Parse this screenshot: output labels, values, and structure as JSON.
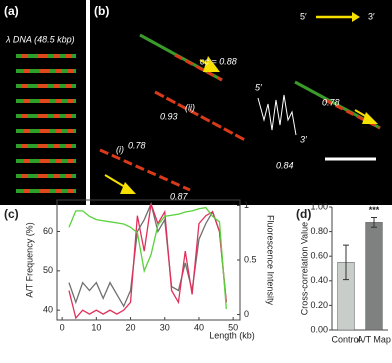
{
  "panels": {
    "a": {
      "label": "(a)",
      "caption": "λ DNA (48.5 kbp)"
    },
    "b": {
      "label": "(b)",
      "end5": "5′",
      "end3": "3′",
      "annotations": [
        "cc = 0.88",
        "0.93",
        "(ii)",
        "(i)",
        "0.78",
        "0.87",
        "0.78",
        "5′",
        "3′",
        "0.84"
      ]
    }
  },
  "chart_data": [
    {
      "type": "line",
      "label": "(c)",
      "xlabel": "Length (kb)",
      "ylabel": "A/T Frequency (%)",
      "y2label": "Fluorescence Intensity",
      "x": [
        2,
        4,
        6,
        8,
        10,
        12,
        14,
        16,
        18,
        20,
        22,
        24,
        26,
        28,
        30,
        32,
        34,
        36,
        38,
        40,
        42,
        44,
        46,
        48
      ],
      "series": [
        {
          "color": "#707070",
          "values": [
            47,
            42,
            47,
            45,
            47,
            43,
            47,
            44,
            41,
            45,
            60,
            63,
            67,
            60,
            63,
            46,
            45,
            52,
            45,
            58,
            62,
            65,
            60,
            42
          ]
        },
        {
          "color": "#e0305a",
          "values": [
            45,
            38,
            40,
            39,
            40,
            39,
            40,
            39,
            40,
            42,
            64,
            55,
            67,
            62,
            65,
            45,
            42,
            55,
            44,
            62,
            64,
            65,
            60,
            42
          ]
        },
        {
          "color": "#5ad23c",
          "axis": "y2",
          "values": [
            0.8,
            0.95,
            0.95,
            0.9,
            0.87,
            0.86,
            0.85,
            0.84,
            0.83,
            0.8,
            0.75,
            0.4,
            0.55,
            0.82,
            0.9,
            0.91,
            0.92,
            0.94,
            0.95,
            0.97,
            0.98,
            0.9,
            0.85,
            0.05
          ]
        }
      ],
      "xlim": [
        -1.5,
        52
      ],
      "xticks": [
        0,
        10,
        20,
        30,
        40,
        50
      ],
      "ylim": [
        37.5,
        68
      ],
      "yticks": [
        40,
        50,
        60
      ],
      "y2lim": [
        -0.05,
        1.05
      ],
      "y2ticks": [
        0,
        0.5,
        1
      ]
    },
    {
      "type": "bar",
      "label": "(d)",
      "ylabel": "Cross-correlation Value",
      "categories": [
        "Control",
        "A/T Map"
      ],
      "values": [
        0.55,
        0.875
      ],
      "errors": [
        0.14,
        0.04
      ],
      "colors": [
        "#c9cdc9",
        "#7f8181"
      ],
      "annotation": "***",
      "ylim": [
        0,
        1
      ],
      "yticks": [
        {
          "value": 0,
          "label": "0.00"
        },
        {
          "value": 0.2,
          "label": "0.20"
        },
        {
          "value": 0.4,
          "label": "0.40"
        },
        {
          "value": 0.6,
          "label": "0.60"
        },
        {
          "value": 0.8,
          "label": "0.80"
        },
        {
          "value": 1,
          "label": "1.00"
        }
      ]
    }
  ]
}
